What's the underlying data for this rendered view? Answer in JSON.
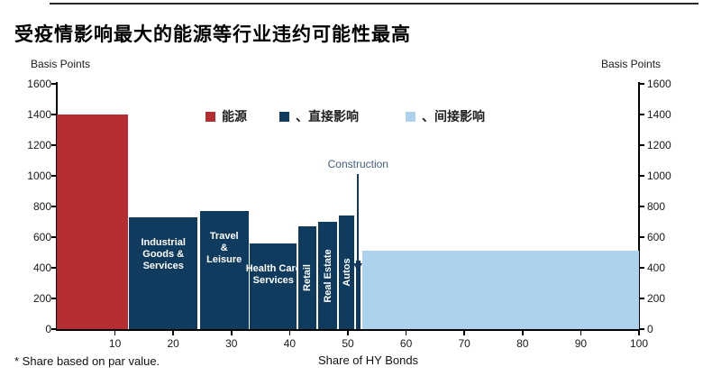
{
  "page": {
    "title": "受疫情影响最大的能源等行业违约可能性最高",
    "footnote": "* Share based on par value."
  },
  "chart_data": {
    "type": "bar",
    "subtype": "variable_width_bar",
    "title": "受疫情影响最大的能源等行业违约可能性最高",
    "xlabel": "Share of HY Bonds",
    "ylabel_left": "Basis Points",
    "ylabel_right": "Basis Points",
    "footnote": "* Share based on par value.",
    "xlim": [
      0,
      100
    ],
    "ylim": [
      0,
      1600
    ],
    "x_ticks": [
      10,
      20,
      30,
      40,
      50,
      60,
      70,
      80,
      90,
      100
    ],
    "y_ticks": [
      0,
      200,
      400,
      600,
      800,
      1000,
      1200,
      1400,
      1600
    ],
    "grid": false,
    "legend_position": "top-inside",
    "legend": [
      {
        "label": "能源",
        "color": "#b42d31"
      },
      {
        "label": "、直接影响",
        "color": "#0f3b5f"
      },
      {
        "label": "、间接影响",
        "color": "#acd2ee"
      }
    ],
    "bars": [
      {
        "name": "Energy",
        "group": "能源",
        "x0": 0,
        "x1": 12.2,
        "value": 1400,
        "color": "#b42d31",
        "label_lines": [],
        "label_orientation": "none"
      },
      {
        "name": "Industrial Goods & Services",
        "group": "直接影响",
        "x0": 12.4,
        "x1": 24.2,
        "value": 730,
        "color": "#0f3b5f",
        "label_lines": [
          "Industrial",
          "Goods &",
          "Services"
        ],
        "label_orientation": "horizontal"
      },
      {
        "name": "Travel & Leisure",
        "group": "直接影响",
        "x0": 24.6,
        "x1": 32.9,
        "value": 770,
        "color": "#0f3b5f",
        "label_lines": [
          "Travel",
          "&",
          "Leisure"
        ],
        "label_orientation": "horizontal"
      },
      {
        "name": "Health Care Services",
        "group": "直接影响",
        "x0": 33.2,
        "x1": 41.2,
        "value": 560,
        "color": "#0f3b5f",
        "label_lines": [
          "Health Care",
          "Services"
        ],
        "label_orientation": "horizontal"
      },
      {
        "name": "Retail",
        "group": "直接影响",
        "x0": 41.5,
        "x1": 44.6,
        "value": 670,
        "color": "#0f3b5f",
        "label_lines": [
          "Retail"
        ],
        "label_orientation": "vertical"
      },
      {
        "name": "Real Estate",
        "group": "直接影响",
        "x0": 44.9,
        "x1": 48.2,
        "value": 700,
        "color": "#0f3b5f",
        "label_lines": [
          "Real Estate"
        ],
        "label_orientation": "vertical"
      },
      {
        "name": "Autos",
        "group": "直接影响",
        "x0": 48.5,
        "x1": 51.1,
        "value": 740,
        "color": "#0f3b5f",
        "label_lines": [
          "Autos"
        ],
        "label_orientation": "vertical"
      },
      {
        "name": "Construction",
        "group": "直接影响",
        "x0": 51.4,
        "x1": 52.1,
        "value": 450,
        "color": "#0f3b5f",
        "label_lines": [],
        "label_orientation": "none"
      },
      {
        "name": "Indirect",
        "group": "间接影响",
        "x0": 52.4,
        "x1": 100,
        "value": 510,
        "color": "#acd2ee",
        "label_lines": [],
        "label_orientation": "none"
      }
    ],
    "annotation": {
      "label": "Construction",
      "x": 51.75
    }
  }
}
